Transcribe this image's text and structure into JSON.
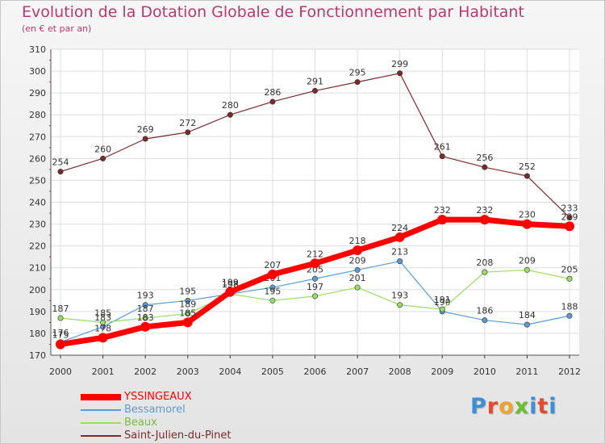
{
  "title": "Evolution de la Dotation Globale de Fonctionnement par Habitant",
  "subtitle": "(en € et par an)",
  "colors": {
    "title": "#b83870",
    "axis": "#333333",
    "grid": "#dddddd"
  },
  "logo": {
    "letters": [
      "P",
      "r",
      "o",
      "x",
      "i",
      "t",
      "i"
    ],
    "colors": [
      "#3d8fd6",
      "#e8492d",
      "#f2a12b",
      "#6bbf2a",
      "#3d8fd6",
      "#e8492d",
      "#3d8fd6"
    ]
  },
  "chart_data": {
    "type": "line",
    "title": "Evolution de la Dotation Globale de Fonctionnement par Habitant",
    "subtitle": "(en € et par an)",
    "x": [
      "2000",
      "2001",
      "2002",
      "2003",
      "2004",
      "2005",
      "2006",
      "2007",
      "2008",
      "2009",
      "2010",
      "2011",
      "2012"
    ],
    "ylim": [
      170,
      310
    ],
    "yticks": [
      170,
      180,
      190,
      200,
      210,
      220,
      230,
      240,
      250,
      260,
      270,
      280,
      290,
      300,
      310
    ],
    "grid": true,
    "legend_position": "bottom-left",
    "series": [
      {
        "name": "YSSINGEAUX",
        "color": "#ff0000",
        "emphasis": true,
        "values": [
          175,
          178,
          183,
          185,
          199,
          207,
          212,
          218,
          224,
          232,
          232,
          230,
          229
        ],
        "labels": [
          "175",
          "178",
          "183",
          "185",
          "199",
          "207",
          "212",
          "218",
          "224",
          "232",
          "232",
          "230",
          "229"
        ]
      },
      {
        "name": "Bessamorel",
        "color": "#5b9bd5",
        "values": [
          176,
          183,
          193,
          195,
          198,
          201,
          205,
          209,
          213,
          190,
          186,
          184,
          188
        ],
        "labels": [
          "176",
          "183",
          "193",
          "195",
          "198",
          "201",
          "205",
          "209",
          "213",
          "190",
          "186",
          "184",
          "188"
        ]
      },
      {
        "name": "Beaux",
        "color": "#99dd66",
        "values": [
          187,
          185,
          187,
          189,
          198,
          195,
          197,
          201,
          193,
          191,
          208,
          209,
          205
        ],
        "labels": [
          "187",
          "185",
          "187",
          "189",
          "198",
          "195",
          "197",
          "201",
          "193",
          "191",
          "208",
          "209",
          "205"
        ]
      },
      {
        "name": "Saint-Julien-du-Pinet",
        "color": "#7a2a2a",
        "values": [
          254,
          260,
          269,
          272,
          280,
          286,
          291,
          295,
          299,
          261,
          256,
          252,
          233
        ],
        "labels": [
          "254",
          "260",
          "269",
          "272",
          "280",
          "286",
          "291",
          "295",
          "299",
          "261",
          "256",
          "252",
          "233"
        ]
      }
    ]
  }
}
